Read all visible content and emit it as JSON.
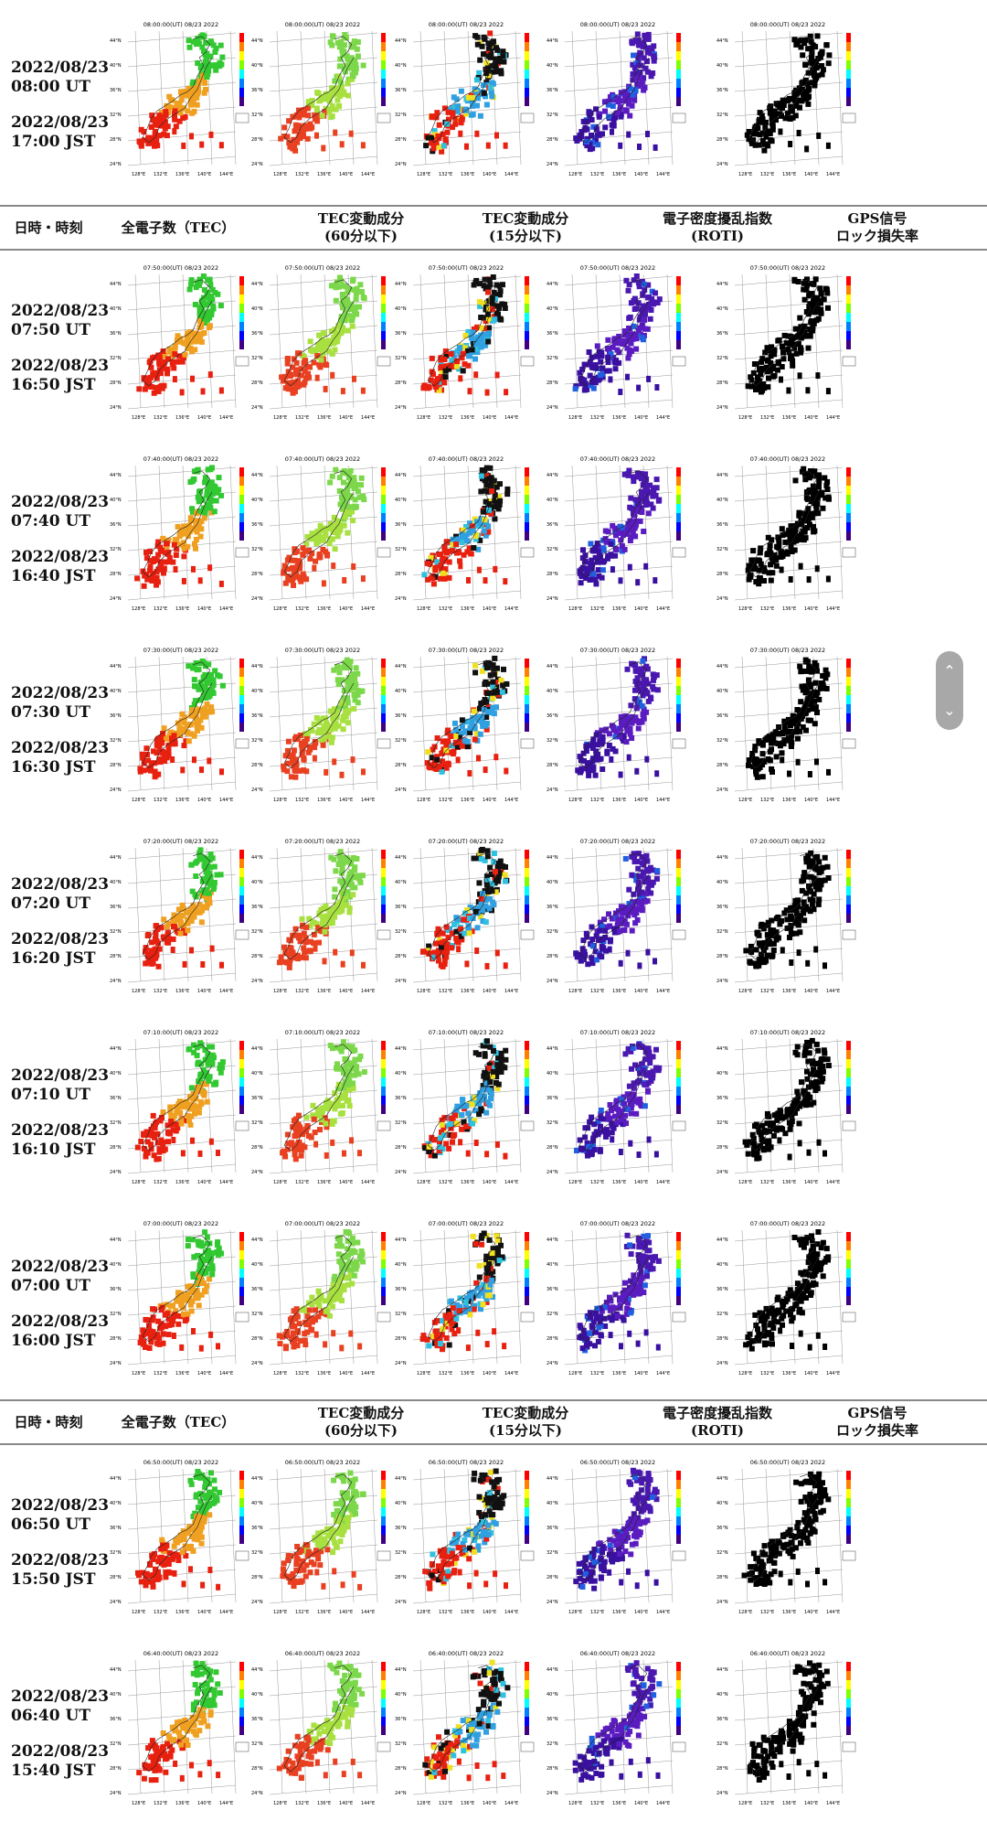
{
  "columns": {
    "datetime": "日時・時刻",
    "tec": "全電子数（TEC）",
    "tec60": "TEC変動成分\n(60分以下)",
    "tec15": "TEC変動成分\n(15分以下)",
    "roti": "電子密度擾乱指数\n(ROTI)",
    "gps": "GPS信号\nロック損失率"
  },
  "axis_labels": {
    "lats": [
      "44°N",
      "40°N",
      "36°N",
      "32°N",
      "28°N",
      "24°N"
    ],
    "lons": [
      "128°E",
      "132°E",
      "136°E",
      "140°E",
      "144°E"
    ]
  },
  "rows": [
    {
      "date_ut": "2022/08/23",
      "time_ut": "08:00 UT",
      "date_jst": "2022/08/23",
      "time_jst": "17:00 JST",
      "map_title": "08:00:00(UT) 08/23 2022"
    },
    {
      "date_ut": "2022/08/23",
      "time_ut": "07:50 UT",
      "date_jst": "2022/08/23",
      "time_jst": "16:50 JST",
      "map_title": "07:50:00(UT) 08/23 2022"
    },
    {
      "date_ut": "2022/08/23",
      "time_ut": "07:40 UT",
      "date_jst": "2022/08/23",
      "time_jst": "16:40 JST",
      "map_title": "07:40:00(UT) 08/23 2022"
    },
    {
      "date_ut": "2022/08/23",
      "time_ut": "07:30 UT",
      "date_jst": "2022/08/23",
      "time_jst": "16:30 JST",
      "map_title": "07:30:00(UT) 08/23 2022"
    },
    {
      "date_ut": "2022/08/23",
      "time_ut": "07:20 UT",
      "date_jst": "2022/08/23",
      "time_jst": "16:20 JST",
      "map_title": "07:20:00(UT) 08/23 2022"
    },
    {
      "date_ut": "2022/08/23",
      "time_ut": "07:10 UT",
      "date_jst": "2022/08/23",
      "time_jst": "16:10 JST",
      "map_title": "07:10:00(UT) 08/23 2022"
    },
    {
      "date_ut": "2022/08/23",
      "time_ut": "07:00 UT",
      "date_jst": "2022/08/23",
      "time_jst": "16:00 JST",
      "map_title": "07:00:00(UT) 08/23 2022"
    },
    {
      "date_ut": "2022/08/23",
      "time_ut": "06:50 UT",
      "date_jst": "2022/08/23",
      "time_jst": "15:50 JST",
      "map_title": "06:50:00(UT) 08/23 2022"
    },
    {
      "date_ut": "2022/08/23",
      "time_ut": "06:40 UT",
      "date_jst": "2022/08/23",
      "time_jst": "15:40 JST",
      "map_title": "06:40:00(UT) 08/23 2022"
    }
  ],
  "map_styles": {
    "tec": {
      "north": "#32c832",
      "mid": "#f0a020",
      "south": "#e82010"
    },
    "tec60": {
      "north": "#7cd84a",
      "mid": "#a8e040",
      "south": "#e84020"
    },
    "tec15": {
      "north": "#101010",
      "mid": "#30a0e0",
      "south": "#e82010"
    },
    "roti": {
      "north": "#4a18b0",
      "mid": "#5a1cc0",
      "south": "#3a10a0"
    },
    "gps": {
      "north": "#000000",
      "mid": "#000000",
      "south": "#000000"
    }
  },
  "scroll_icons": {
    "up": "chevron-up-icon",
    "down": "chevron-down-icon"
  }
}
